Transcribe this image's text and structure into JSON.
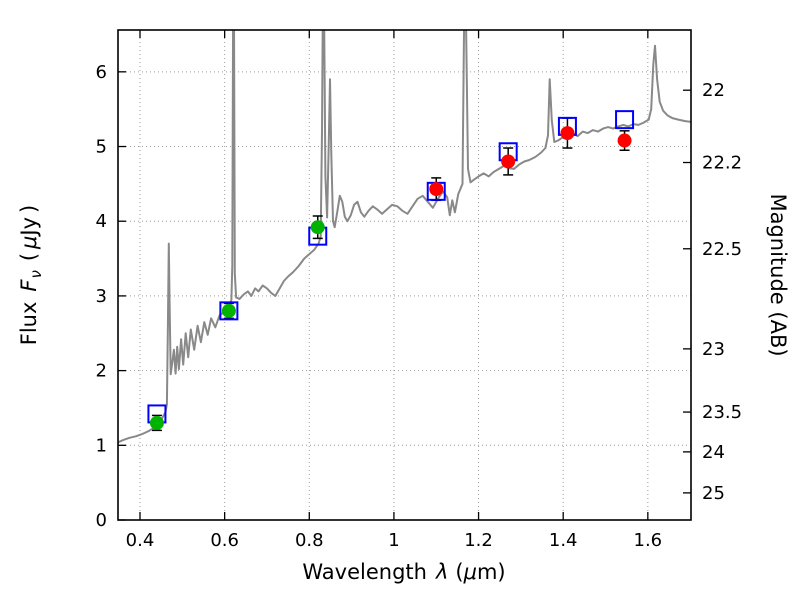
{
  "chart_data": {
    "type": "line",
    "title": "",
    "description": "Galaxy spectral energy distribution: gray model spectrum with observed photometry (green/red filled circles with error bars) and model photometry (blue open squares)",
    "xlabel_parts": {
      "word": "Wavelength",
      "lambda": "λ",
      "open": "(",
      "mu": "μ",
      "close": "m)"
    },
    "ylabel_left_parts": {
      "flux": "Flux",
      "F": "F",
      "nu": "ν",
      "open": "(",
      "mu": "μ",
      "jy": "Jy",
      "close": ")"
    },
    "ylabel_right": "Magnitude (AB)",
    "xlim": [
      0.348,
      1.702
    ],
    "ylim": [
      0,
      6.56
    ],
    "grid": {
      "on": true,
      "style": "dotted",
      "color": "#9e9e9e"
    },
    "legend": {
      "visible": false
    },
    "x_ticks": {
      "values": [
        0.4,
        0.6,
        0.8,
        1.0,
        1.2,
        1.4,
        1.6
      ],
      "labels": [
        "0.4",
        "0.6",
        "0.8",
        "1",
        "1.2",
        "1.4",
        "1.6"
      ]
    },
    "y_ticks_left": {
      "values": [
        0,
        1,
        2,
        3,
        4,
        5,
        6
      ],
      "labels": [
        "0",
        "1",
        "2",
        "3",
        "4",
        "5",
        "6"
      ]
    },
    "y_ticks_right": {
      "labels": [
        "22",
        "22.2",
        "22.5",
        "23",
        "23.5",
        "24",
        "25"
      ],
      "flux_positions": [
        5.754,
        4.786,
        3.631,
        2.291,
        1.445,
        0.912,
        0.363
      ]
    },
    "colors": {
      "spectrum": "#898989",
      "observed_optical": "#00b300",
      "observed_nir": "#ff0000",
      "model_photometry": "#0000ff",
      "errorbar": "#000000",
      "frame": "#000000"
    },
    "series": {
      "spectrum": {
        "name": "model-spectrum",
        "points": [
          [
            0.348,
            1.04
          ],
          [
            0.36,
            1.07
          ],
          [
            0.375,
            1.1
          ],
          [
            0.39,
            1.12
          ],
          [
            0.405,
            1.15
          ],
          [
            0.42,
            1.19
          ],
          [
            0.432,
            1.23
          ],
          [
            0.442,
            1.28
          ],
          [
            0.45,
            1.34
          ],
          [
            0.456,
            1.4
          ],
          [
            0.46,
            1.44
          ],
          [
            0.4635,
            1.55
          ],
          [
            0.466,
            2.6
          ],
          [
            0.468,
            3.7
          ],
          [
            0.47,
            2.9
          ],
          [
            0.4725,
            1.95
          ],
          [
            0.476,
            2.1
          ],
          [
            0.48,
            2.28
          ],
          [
            0.484,
            1.96
          ],
          [
            0.488,
            2.32
          ],
          [
            0.492,
            2.02
          ],
          [
            0.497,
            2.42
          ],
          [
            0.502,
            2.08
          ],
          [
            0.508,
            2.5
          ],
          [
            0.514,
            2.18
          ],
          [
            0.52,
            2.55
          ],
          [
            0.528,
            2.28
          ],
          [
            0.536,
            2.6
          ],
          [
            0.544,
            2.38
          ],
          [
            0.552,
            2.65
          ],
          [
            0.56,
            2.48
          ],
          [
            0.568,
            2.7
          ],
          [
            0.578,
            2.58
          ],
          [
            0.588,
            2.74
          ],
          [
            0.598,
            2.78
          ],
          [
            0.605,
            2.8
          ],
          [
            0.612,
            2.86
          ],
          [
            0.616,
            2.95
          ],
          [
            0.618,
            3.4
          ],
          [
            0.62,
            6.8
          ],
          [
            0.622,
            6.8
          ],
          [
            0.624,
            3.3
          ],
          [
            0.627,
            2.98
          ],
          [
            0.635,
            2.96
          ],
          [
            0.645,
            3.02
          ],
          [
            0.655,
            3.06
          ],
          [
            0.663,
            3.0
          ],
          [
            0.672,
            3.1
          ],
          [
            0.68,
            3.06
          ],
          [
            0.69,
            3.14
          ],
          [
            0.7,
            3.1
          ],
          [
            0.71,
            3.04
          ],
          [
            0.72,
            3.0
          ],
          [
            0.73,
            3.1
          ],
          [
            0.74,
            3.2
          ],
          [
            0.75,
            3.26
          ],
          [
            0.762,
            3.32
          ],
          [
            0.775,
            3.4
          ],
          [
            0.788,
            3.5
          ],
          [
            0.8,
            3.56
          ],
          [
            0.812,
            3.62
          ],
          [
            0.822,
            3.7
          ],
          [
            0.827,
            3.8
          ],
          [
            0.83,
            5.2
          ],
          [
            0.832,
            6.8
          ],
          [
            0.835,
            6.8
          ],
          [
            0.838,
            4.6
          ],
          [
            0.842,
            4.05
          ],
          [
            0.846,
            5.0
          ],
          [
            0.849,
            5.9
          ],
          [
            0.852,
            4.9
          ],
          [
            0.856,
            4.0
          ],
          [
            0.86,
            3.92
          ],
          [
            0.866,
            4.12
          ],
          [
            0.872,
            4.34
          ],
          [
            0.878,
            4.26
          ],
          [
            0.884,
            4.06
          ],
          [
            0.89,
            4.0
          ],
          [
            0.898,
            4.08
          ],
          [
            0.906,
            4.22
          ],
          [
            0.914,
            4.26
          ],
          [
            0.922,
            4.12
          ],
          [
            0.93,
            4.06
          ],
          [
            0.94,
            4.14
          ],
          [
            0.95,
            4.2
          ],
          [
            0.96,
            4.16
          ],
          [
            0.972,
            4.1
          ],
          [
            0.984,
            4.16
          ],
          [
            0.996,
            4.22
          ],
          [
            1.008,
            4.2
          ],
          [
            1.02,
            4.14
          ],
          [
            1.032,
            4.1
          ],
          [
            1.044,
            4.2
          ],
          [
            1.056,
            4.3
          ],
          [
            1.068,
            4.34
          ],
          [
            1.08,
            4.26
          ],
          [
            1.092,
            4.18
          ],
          [
            1.104,
            4.3
          ],
          [
            1.116,
            4.4
          ],
          [
            1.126,
            4.32
          ],
          [
            1.132,
            4.08
          ],
          [
            1.138,
            4.28
          ],
          [
            1.144,
            4.12
          ],
          [
            1.152,
            4.36
          ],
          [
            1.162,
            4.5
          ],
          [
            1.166,
            6.8
          ],
          [
            1.17,
            6.8
          ],
          [
            1.175,
            4.7
          ],
          [
            1.181,
            4.52
          ],
          [
            1.19,
            4.56
          ],
          [
            1.2,
            4.6
          ],
          [
            1.212,
            4.64
          ],
          [
            1.224,
            4.6
          ],
          [
            1.236,
            4.66
          ],
          [
            1.248,
            4.7
          ],
          [
            1.26,
            4.74
          ],
          [
            1.272,
            4.71
          ],
          [
            1.284,
            4.7
          ],
          [
            1.296,
            4.76
          ],
          [
            1.308,
            4.8
          ],
          [
            1.32,
            4.82
          ],
          [
            1.334,
            4.86
          ],
          [
            1.348,
            4.92
          ],
          [
            1.358,
            4.98
          ],
          [
            1.364,
            5.15
          ],
          [
            1.368,
            5.9
          ],
          [
            1.373,
            5.35
          ],
          [
            1.379,
            5.06
          ],
          [
            1.388,
            5.08
          ],
          [
            1.398,
            5.12
          ],
          [
            1.41,
            5.15
          ],
          [
            1.422,
            5.18
          ],
          [
            1.434,
            5.14
          ],
          [
            1.446,
            5.2
          ],
          [
            1.458,
            5.18
          ],
          [
            1.47,
            5.22
          ],
          [
            1.482,
            5.2
          ],
          [
            1.494,
            5.24
          ],
          [
            1.506,
            5.26
          ],
          [
            1.518,
            5.24
          ],
          [
            1.53,
            5.27
          ],
          [
            1.542,
            5.29
          ],
          [
            1.554,
            5.27
          ],
          [
            1.566,
            5.3
          ],
          [
            1.578,
            5.29
          ],
          [
            1.59,
            5.32
          ],
          [
            1.602,
            5.36
          ],
          [
            1.608,
            5.5
          ],
          [
            1.613,
            6.1
          ],
          [
            1.617,
            6.35
          ],
          [
            1.622,
            5.9
          ],
          [
            1.628,
            5.6
          ],
          [
            1.636,
            5.48
          ],
          [
            1.646,
            5.42
          ],
          [
            1.658,
            5.38
          ],
          [
            1.672,
            5.36
          ],
          [
            1.688,
            5.34
          ],
          [
            1.702,
            5.33
          ]
        ]
      },
      "observed_optical": {
        "name": "observed-photometry-optical",
        "marker": "filled-circle",
        "points": [
          {
            "x": 0.44,
            "y": 1.3,
            "yerr": 0.1
          },
          {
            "x": 0.61,
            "y": 2.8,
            "yerr": 0.1
          },
          {
            "x": 0.82,
            "y": 3.92,
            "yerr": 0.15
          }
        ]
      },
      "observed_nir": {
        "name": "observed-photometry-nir",
        "marker": "filled-circle",
        "points": [
          {
            "x": 1.1,
            "y": 4.43,
            "yerr": 0.15
          },
          {
            "x": 1.27,
            "y": 4.8,
            "yerr": 0.18
          },
          {
            "x": 1.41,
            "y": 5.18,
            "yerr": 0.2
          },
          {
            "x": 1.545,
            "y": 5.08,
            "yerr": 0.13
          }
        ]
      },
      "model_photometry": {
        "name": "model-photometry",
        "marker": "open-square",
        "points": [
          {
            "x": 0.44,
            "y": 1.42
          },
          {
            "x": 0.61,
            "y": 2.8
          },
          {
            "x": 0.82,
            "y": 3.8
          },
          {
            "x": 1.1,
            "y": 4.4
          },
          {
            "x": 1.27,
            "y": 4.93
          },
          {
            "x": 1.41,
            "y": 5.27
          },
          {
            "x": 1.545,
            "y": 5.36
          }
        ]
      }
    }
  }
}
